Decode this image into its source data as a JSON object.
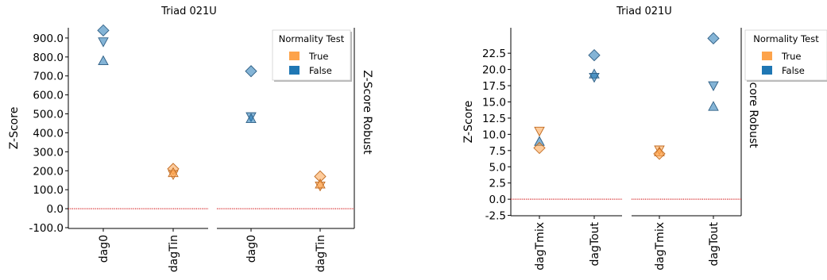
{
  "chart_data": [
    {
      "type": "scatter",
      "title": "Triad 021U",
      "ylabel": "Z-Score",
      "right_label": "Z-Score Robust",
      "ylim": [
        -100,
        1000
      ],
      "yticks": [
        -100,
        0,
        100,
        200,
        300,
        400,
        500,
        600,
        700,
        800,
        900
      ],
      "ytick_labels": [
        "-100.0",
        "0.0",
        "100.0",
        "200.0",
        "300.0",
        "400.0",
        "500.0",
        "600.0",
        "700.0",
        "800.0",
        "900.0"
      ],
      "reference_line": {
        "y": 0,
        "color": "#d62728",
        "style": "dotted"
      },
      "legend": {
        "title": "Normality Test",
        "position": "top-right",
        "entries": [
          {
            "label": "True",
            "color": "#fda34b"
          },
          {
            "label": "False",
            "color": "#1f77b4"
          }
        ]
      },
      "panels": [
        {
          "categories": [
            "dag0",
            "dagTin"
          ],
          "points": [
            {
              "x": "dag0",
              "y": 940,
              "marker": "diamond",
              "normal": false
            },
            {
              "x": "dag0",
              "y": 880,
              "marker": "triangle-down",
              "normal": false
            },
            {
              "x": "dag0",
              "y": 780,
              "marker": "triangle-up",
              "normal": false
            },
            {
              "x": "dagTin",
              "y": 210,
              "marker": "diamond",
              "normal": true
            },
            {
              "x": "dagTin",
              "y": 180,
              "marker": "triangle-down",
              "normal": true
            },
            {
              "x": "dagTin",
              "y": 190,
              "marker": "triangle-up",
              "normal": true
            }
          ]
        },
        {
          "categories": [
            "dag0",
            "dagTin"
          ],
          "points": [
            {
              "x": "dag0",
              "y": 725,
              "marker": "diamond",
              "normal": false
            },
            {
              "x": "dag0",
              "y": 485,
              "marker": "triangle-down",
              "normal": false
            },
            {
              "x": "dag0",
              "y": 475,
              "marker": "triangle-up",
              "normal": false
            },
            {
              "x": "dagTin",
              "y": 170,
              "marker": "diamond",
              "normal": true
            },
            {
              "x": "dagTin",
              "y": 120,
              "marker": "triangle-down",
              "normal": true
            },
            {
              "x": "dagTin",
              "y": 130,
              "marker": "triangle-up",
              "normal": true
            }
          ]
        }
      ]
    },
    {
      "type": "scatter",
      "title": "Triad 021U",
      "ylabel": "Z-Score",
      "right_label": "Z-Score Robust",
      "ylim": [
        -2.5,
        26
      ],
      "yticks": [
        -2.5,
        0,
        2.5,
        5,
        7.5,
        10,
        12.5,
        15,
        17.5,
        20,
        22.5
      ],
      "ytick_labels": [
        "-2.5",
        "0.0",
        "2.5",
        "5.0",
        "7.5",
        "10.0",
        "12.5",
        "15.0",
        "17.5",
        "20.0",
        "22.5"
      ],
      "reference_line": {
        "y": 0,
        "color": "#d62728",
        "style": "dotted"
      },
      "legend": {
        "title": "Normality Test",
        "position": "top-right",
        "entries": [
          {
            "label": "True",
            "color": "#fda34b"
          },
          {
            "label": "False",
            "color": "#1f77b4"
          }
        ]
      },
      "panels": [
        {
          "categories": [
            "dagTmix",
            "dagTout"
          ],
          "points": [
            {
              "x": "dagTmix",
              "y": 10.5,
              "marker": "triangle-down",
              "normal": true
            },
            {
              "x": "dagTmix",
              "y": 8.9,
              "marker": "triangle-up",
              "normal": false
            },
            {
              "x": "dagTmix",
              "y": 7.9,
              "marker": "diamond",
              "normal": true
            },
            {
              "x": "dagTout",
              "y": 22.2,
              "marker": "diamond",
              "normal": false
            },
            {
              "x": "dagTout",
              "y": 19.3,
              "marker": "triangle-up",
              "normal": false
            },
            {
              "x": "dagTout",
              "y": 18.8,
              "marker": "triangle-down",
              "normal": false
            }
          ]
        },
        {
          "categories": [
            "dagTmix",
            "dagTout"
          ],
          "points": [
            {
              "x": "dagTmix",
              "y": 7.6,
              "marker": "triangle-down",
              "normal": true
            },
            {
              "x": "dagTmix",
              "y": 7.3,
              "marker": "triangle-up",
              "normal": true
            },
            {
              "x": "dagTmix",
              "y": 7.0,
              "marker": "diamond",
              "normal": true
            },
            {
              "x": "dagTout",
              "y": 24.8,
              "marker": "diamond",
              "normal": false
            },
            {
              "x": "dagTout",
              "y": 17.5,
              "marker": "triangle-down",
              "normal": false
            },
            {
              "x": "dagTout",
              "y": 14.3,
              "marker": "triangle-up",
              "normal": false
            }
          ]
        }
      ]
    }
  ]
}
